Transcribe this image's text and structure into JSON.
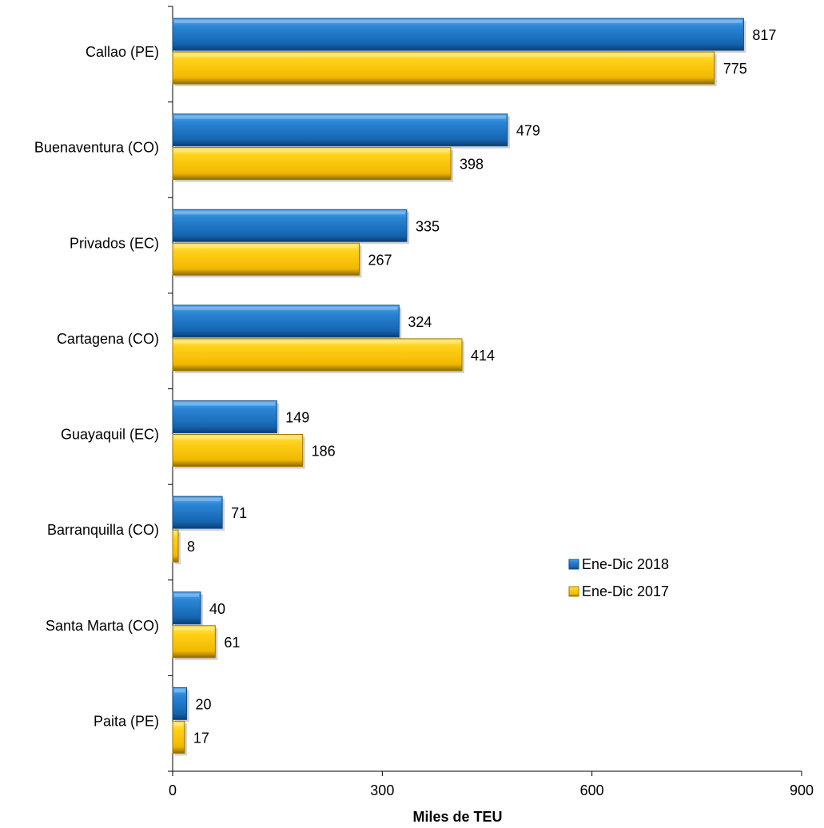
{
  "chart_data": {
    "type": "bar",
    "orientation": "horizontal",
    "categories": [
      "Callao (PE)",
      "Buenaventura (CO)",
      "Privados (EC)",
      "Cartagena (CO)",
      "Guayaquil (EC)",
      "Barranquilla (CO)",
      "Santa Marta (CO)",
      "Paita (PE)"
    ],
    "series": [
      {
        "name": "Ene-Dic 2018",
        "values": [
          817,
          479,
          335,
          324,
          149,
          71,
          40,
          20
        ],
        "color": "#1f78c8"
      },
      {
        "name": "Ene-Dic 2017",
        "values": [
          775,
          398,
          267,
          414,
          186,
          8,
          61,
          17
        ],
        "color": "#ffc800"
      }
    ],
    "xlabel": "Miles de TEU",
    "xlim": [
      0,
      900
    ],
    "xticks": [
      0,
      300,
      600,
      900
    ],
    "grid": false,
    "legend_position": "right"
  }
}
